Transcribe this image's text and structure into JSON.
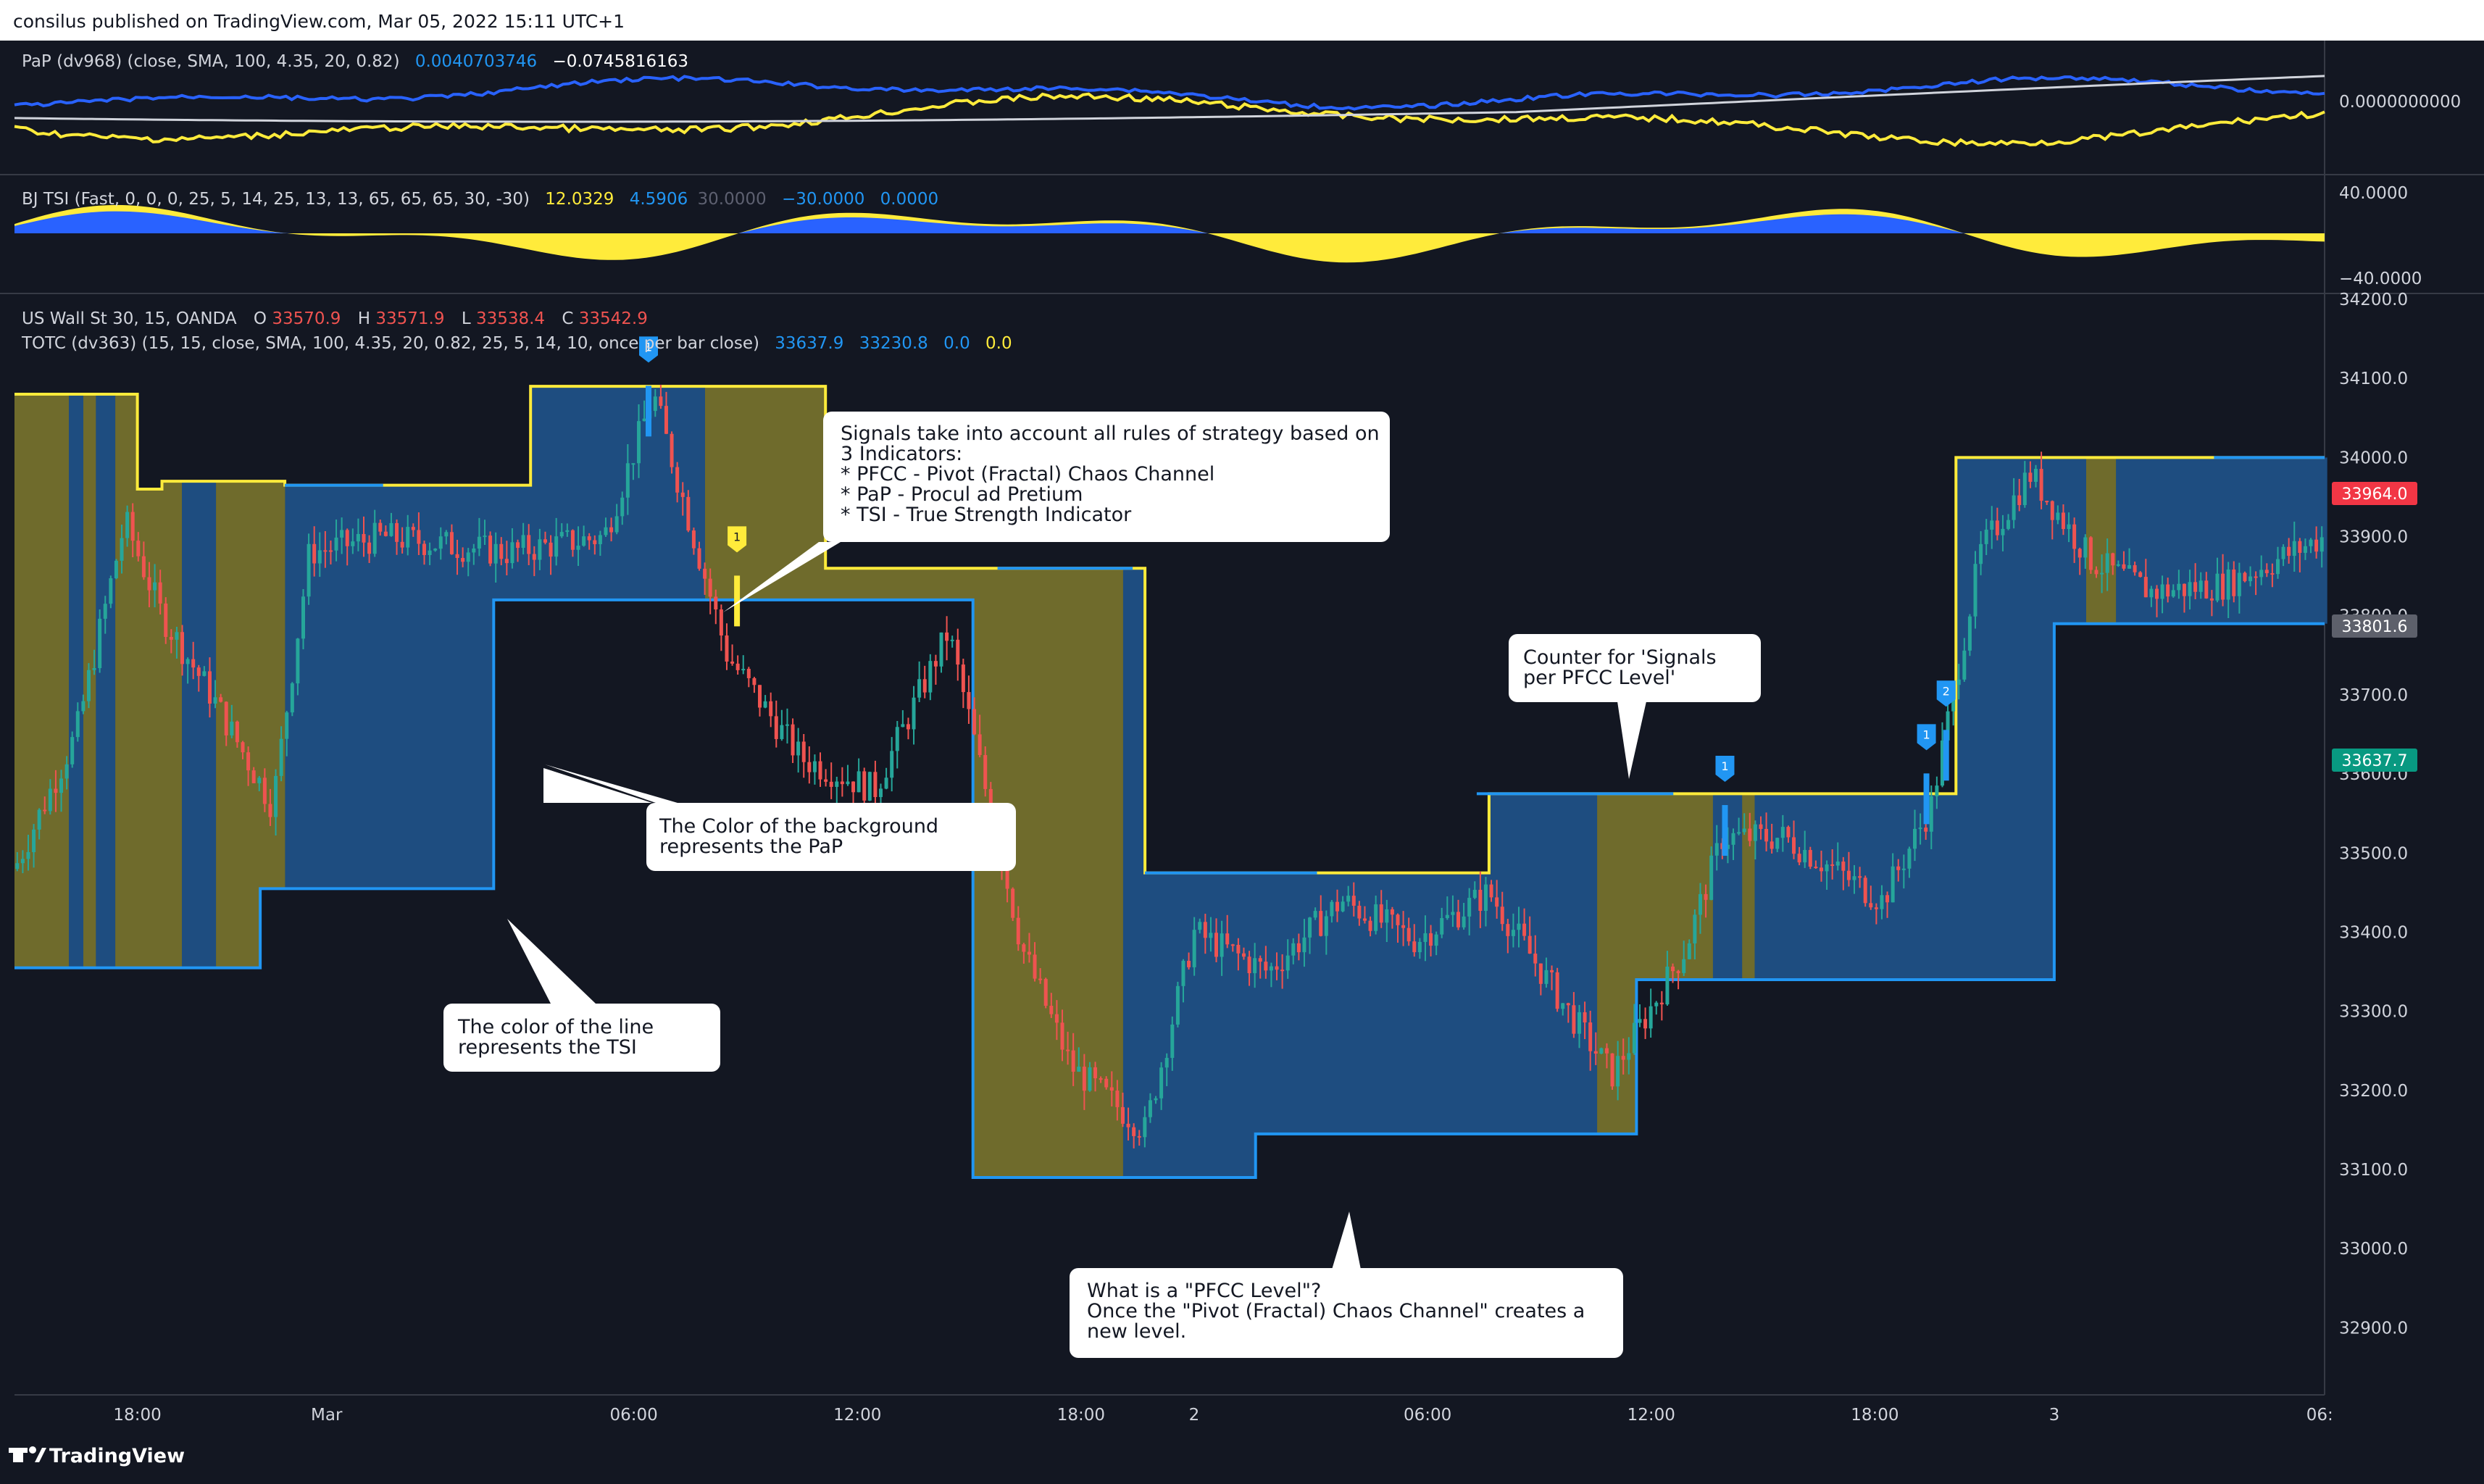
{
  "header": {
    "published": "consilus published on TradingView.com, Mar 05, 2022 15:11 UTC+1"
  },
  "footer": {
    "brand": "TradingView"
  },
  "pap_pane": {
    "legend_label": "PaP (dv968) (close, SMA, 100, 4.35, 20, 0.82)",
    "value1": "0.0040703746",
    "value2": "−0.0745816163",
    "axis_label": "0.0000000000"
  },
  "tsi_pane": {
    "legend_label": "BJ TSI (Fast, 0, 0, 0, 25, 5, 14, 25, 13, 13, 65, 65, 65, 30, -30)",
    "value1": "12.0329",
    "value2": "4.5906",
    "value3": "30.0000",
    "value4": "−30.0000",
    "value5": "0.0000",
    "axis_top": "40.0000",
    "axis_bottom": "−40.0000"
  },
  "main_pane": {
    "symbol_label": "US Wall St 30, 15, OANDA",
    "o_label": "O",
    "o_value": "33570.9",
    "h_label": "H",
    "h_value": "33571.9",
    "l_label": "L",
    "l_value": "33538.4",
    "c_label": "C",
    "c_value": "33542.9",
    "totc_label": "TOTC (dv363) (15, 15, close, SMA, 100, 4.35, 20, 0.82, 25, 5, 14, 10, once per bar close)",
    "totc_v1": "33637.9",
    "totc_v2": "33230.8",
    "totc_v3": "0.0",
    "totc_v4": "0.0",
    "price_tag_red": "33964.0",
    "price_tag_gray": "33801.6",
    "price_tag_green": "33637.7"
  },
  "colors": {
    "background": "#131722",
    "blue_fill": "#1e4d80",
    "olive_fill": "#6f6b2c",
    "line_yellow": "#ffeb3b",
    "line_blue": "#2196f3",
    "candle_up": "#26a69a",
    "candle_down": "#ef5350",
    "pap_blue": "#2962ff",
    "tsi_yellow": "#ffeb3b"
  },
  "callouts": [
    {
      "id": "signals",
      "lines": [
        "Signals take into account all rules of strategy based on",
        "3 Indicators:",
        "* PFCC - Pivot (Fractal) Chaos Channel",
        "* PaP - Procul ad Pretium",
        "* TSI - True Strength Indicator"
      ]
    },
    {
      "id": "background",
      "lines": [
        "The Color of the background",
        "represents the PaP"
      ]
    },
    {
      "id": "line",
      "lines": [
        "The color of the line",
        "represents the TSI"
      ]
    },
    {
      "id": "counter",
      "lines": [
        "Counter for 'Signals",
        "per PFCC Level'"
      ]
    },
    {
      "id": "pfcc",
      "lines": [
        "What is a \"PFCC Level\"?",
        "Once the \"Pivot (Fractal) Chaos Channel\" creates a",
        "new level."
      ]
    }
  ],
  "signal_markers": [
    {
      "label": "1",
      "color": "blue"
    },
    {
      "label": "1",
      "color": "yellow"
    },
    {
      "label": "1",
      "color": "blue"
    },
    {
      "label": "1",
      "color": "blue"
    },
    {
      "label": "2",
      "color": "blue"
    }
  ],
  "chart_data": {
    "type": "line",
    "x_tick_labels": [
      "18:00",
      "Mar",
      "06:00",
      "12:00",
      "18:00",
      "2",
      "06:00",
      "12:00",
      "18:00",
      "3",
      "06:"
    ],
    "y_tick_labels": [
      "34200.0",
      "34100.0",
      "34000.0",
      "33900.0",
      "33800.0",
      "33700.0",
      "33600.0",
      "33500.0",
      "33400.0",
      "33300.0",
      "33200.0",
      "33100.0",
      "33000.0",
      "32900.0"
    ],
    "ylim": [
      32850,
      34200
    ],
    "series": [
      {
        "x": [
          0,
          0.5,
          0.5,
          0.6,
          0.6,
          0.8,
          0.8,
          1.1,
          1.1,
          1.55,
          1.55,
          2.1,
          2.1,
          3.3,
          3.3,
          4.0,
          4.0,
          4.6,
          4.6,
          5.1,
          5.1,
          6.0,
          6.0,
          6.8,
          6.8,
          7.9,
          7.9,
          8.4,
          8.4,
          8.9,
          8.9,
          9.4
        ],
        "values": [
          34080,
          34080,
          33960,
          33960,
          33970,
          33970,
          33970,
          33970,
          33965,
          33965,
          33965,
          33965,
          34090,
          34090,
          33860,
          33860,
          33860,
          33860,
          33475,
          33475,
          33475,
          33475,
          33575,
          33575,
          33575,
          33575,
          34000,
          34000,
          34000,
          34000,
          34000,
          34000
        ]
      },
      {
        "x": [
          0,
          1.0,
          1.0,
          1.95,
          1.95,
          3.1,
          3.1,
          3.9,
          3.9,
          4.25,
          4.25,
          5.05,
          5.05,
          6.0,
          6.0,
          6.6,
          6.6,
          7.0,
          7.0,
          8.3,
          8.3,
          8.85,
          8.85,
          9.4
        ],
        "values": [
          33355,
          33355,
          33455,
          33455,
          33820,
          33820,
          33820,
          33820,
          33090,
          33090,
          33090,
          33090,
          33145,
          33145,
          33145,
          33145,
          33340,
          33340,
          33340,
          33340,
          33790,
          33790,
          33790,
          33790
        ]
      }
    ]
  }
}
